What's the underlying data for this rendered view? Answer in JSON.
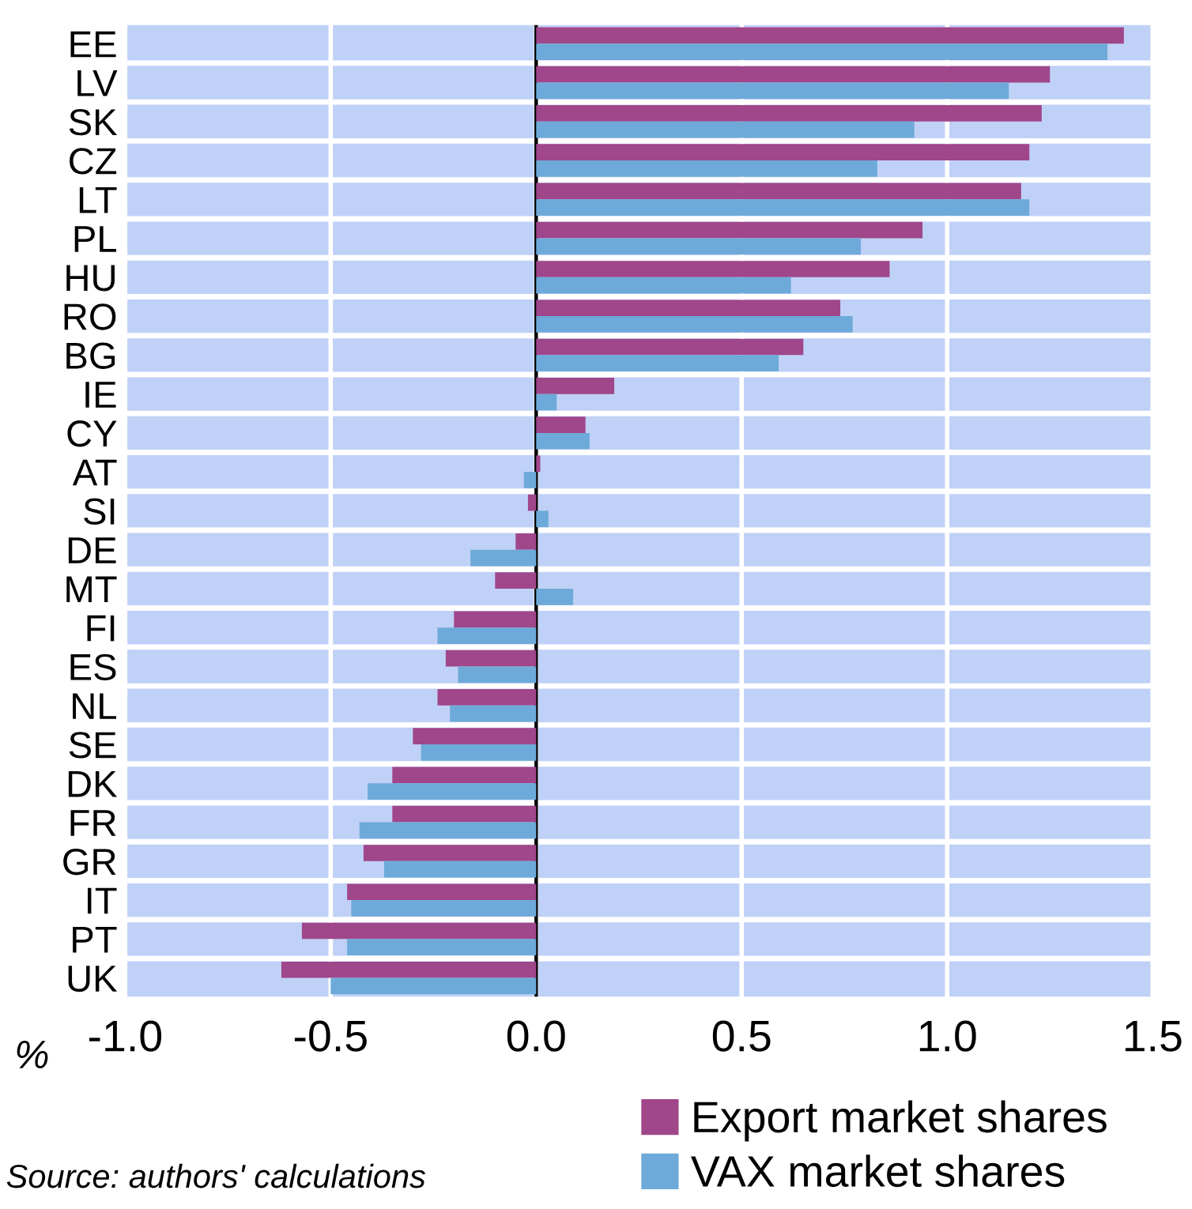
{
  "chart_data": {
    "type": "bar",
    "orientation": "horizontal",
    "xlabel": "%",
    "categories": [
      "EE",
      "LV",
      "SK",
      "CZ",
      "LT",
      "PL",
      "HU",
      "RO",
      "BG",
      "IE",
      "CY",
      "AT",
      "SI",
      "DE",
      "MT",
      "FI",
      "ES",
      "NL",
      "SE",
      "DK",
      "FR",
      "GR",
      "IT",
      "PT",
      "UK"
    ],
    "series": [
      {
        "name": "Export market shares",
        "color": "#a0468a",
        "values": [
          1.43,
          1.25,
          1.23,
          1.2,
          1.18,
          0.94,
          0.86,
          0.74,
          0.65,
          0.19,
          0.12,
          0.01,
          -0.02,
          -0.05,
          -0.1,
          -0.2,
          -0.22,
          -0.24,
          -0.3,
          -0.35,
          -0.35,
          -0.42,
          -0.46,
          -0.57,
          -0.62
        ]
      },
      {
        "name": "VAX market shares",
        "color": "#6eaad9",
        "values": [
          1.39,
          1.15,
          0.92,
          0.83,
          1.2,
          0.79,
          0.62,
          0.77,
          0.59,
          0.05,
          0.13,
          -0.03,
          0.03,
          -0.16,
          0.09,
          -0.24,
          -0.19,
          -0.21,
          -0.28,
          -0.41,
          -0.43,
          -0.37,
          -0.45,
          -0.46,
          -0.5
        ]
      }
    ],
    "xlim": [
      -1.0,
      1.5
    ],
    "xticks": [
      {
        "value": -1,
        "label": "-1.0"
      },
      {
        "value": -0.5,
        "label": "-0.5"
      },
      {
        "value": 0,
        "label": "0.0"
      },
      {
        "value": 0.5,
        "label": "0.5"
      },
      {
        "value": 1,
        "label": "1.0"
      },
      {
        "value": 1.5,
        "label": "1.5"
      }
    ],
    "ref_lines": [
      {
        "axis": "x",
        "value": 0,
        "color": "#000000"
      }
    ],
    "grid": "x",
    "legend": "bottom right",
    "annotations": [
      "Source: authors' calculations"
    ]
  }
}
